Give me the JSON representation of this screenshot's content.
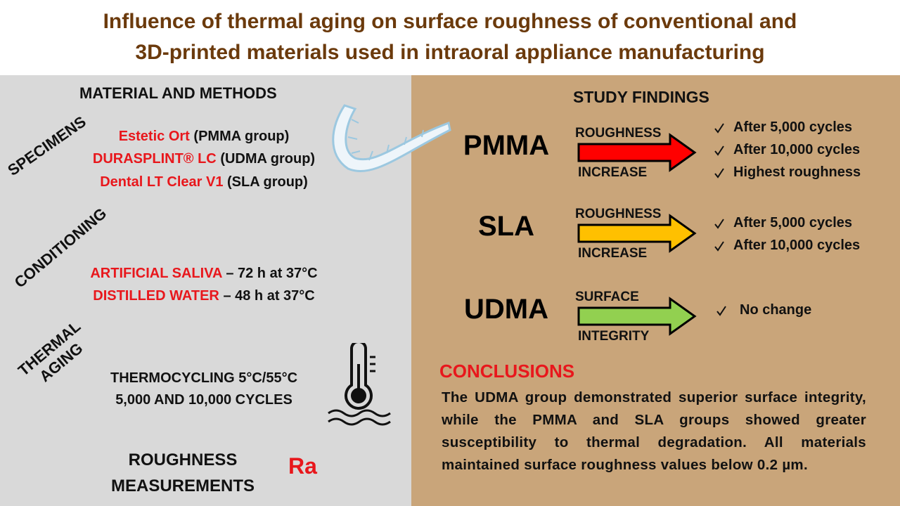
{
  "title": [
    "Influence of thermal aging on surface roughness of conventional and",
    "3D-printed materials used in intraoral appliance manufacturing"
  ],
  "methods": {
    "heading": "MATERIAL AND METHODS",
    "specimens": {
      "label": "SPECIMENS",
      "items": [
        {
          "name": "Estetic Ort",
          "group": "(PMMA group)"
        },
        {
          "name": "DURASPLINT® LC",
          "group": "(UDMA group)"
        },
        {
          "name": "Dental LT Clear V1",
          "group": "(SLA group)"
        }
      ]
    },
    "conditioning": {
      "label": "CONDITIONING",
      "items": [
        {
          "name": "ARTIFICIAL SALIVA",
          "detail": "– 72 h at 37°C"
        },
        {
          "name": "DISTILLED WATER",
          "detail": "– 48 h at 37°C"
        }
      ]
    },
    "thermal_aging": {
      "label": [
        "THERMAL",
        "AGING"
      ],
      "lines": [
        "THERMOCYCLING 5°C/55°C",
        "5,000 AND 10,000 CYCLES"
      ]
    },
    "roughness": {
      "label": [
        "ROUGHNESS",
        "MEASUREMENTS"
      ],
      "symbol": "Ra"
    }
  },
  "findings": {
    "heading": "STUDY FINDINGS",
    "groups": [
      {
        "name": "PMMA",
        "top": "ROUGHNESS",
        "bottom": "INCREASE",
        "color": "#ff0000",
        "items": [
          "After 5,000 cycles",
          "After 10,000 cycles",
          "Highest roughness"
        ]
      },
      {
        "name": "SLA",
        "top": "ROUGHNESS",
        "bottom": "INCREASE",
        "color": "#ffc000",
        "items": [
          "After 5,000 cycles",
          "After 10,000 cycles"
        ]
      },
      {
        "name": "UDMA",
        "top": "SURFACE",
        "bottom": "INTEGRITY",
        "color": "#92d050",
        "items": [
          "No change"
        ]
      }
    ]
  },
  "conclusions": {
    "heading": "CONCLUSIONS",
    "text": "The UDMA group demonstrated superior surface integrity, while the PMMA and SLA groups showed greater susceptibility to thermal degradation. All materials maintained surface roughness values below 0.2 µm."
  }
}
